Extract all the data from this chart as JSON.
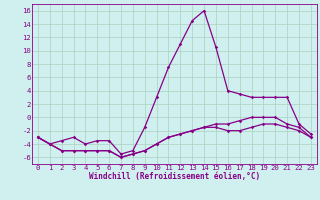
{
  "xlabel": "Windchill (Refroidissement éolien,°C)",
  "x": [
    0,
    1,
    2,
    3,
    4,
    5,
    6,
    7,
    8,
    9,
    10,
    11,
    12,
    13,
    14,
    15,
    16,
    17,
    18,
    19,
    20,
    21,
    22,
    23
  ],
  "line1": [
    -3,
    -4,
    -3.5,
    -3,
    -4,
    -3.5,
    -3.5,
    -5.5,
    -5,
    -1.5,
    3,
    7.5,
    11,
    14.5,
    16,
    10.5,
    4,
    3.5,
    3,
    3,
    3,
    3,
    -1,
    -2.5
  ],
  "line2": [
    -3,
    -4,
    -5,
    -5,
    -5,
    -5,
    -5,
    -6,
    -5.5,
    -5,
    -4,
    -3,
    -2.5,
    -2,
    -1.5,
    -1,
    -1,
    -0.5,
    0,
    0,
    0,
    -1,
    -1.5,
    -3
  ],
  "line3": [
    -3,
    -4,
    -5,
    -5,
    -5,
    -5,
    -5,
    -6,
    -5.5,
    -5,
    -4,
    -3,
    -2.5,
    -2,
    -1.5,
    -1.5,
    -2,
    -2,
    -1.5,
    -1,
    -1,
    -1.5,
    -2,
    -3
  ],
  "bg_color": "#cff0ee",
  "grid_color": "#aacfbf",
  "line_color": "#880088",
  "ylim": [
    -7,
    17
  ],
  "yticks": [
    -6,
    -4,
    -2,
    0,
    2,
    4,
    6,
    8,
    10,
    12,
    14,
    16
  ],
  "xtick_labels": [
    "0",
    "1",
    "2",
    "3",
    "4",
    "5",
    "6",
    "7",
    "8",
    "9",
    "10",
    "11",
    "12",
    "13",
    "14",
    "15",
    "16",
    "17",
    "18",
    "19",
    "20",
    "21",
    "22",
    "23"
  ],
  "xlabel_fontsize": 5.5,
  "tick_fontsize": 5.2,
  "ylabel_fontsize": 5.5
}
